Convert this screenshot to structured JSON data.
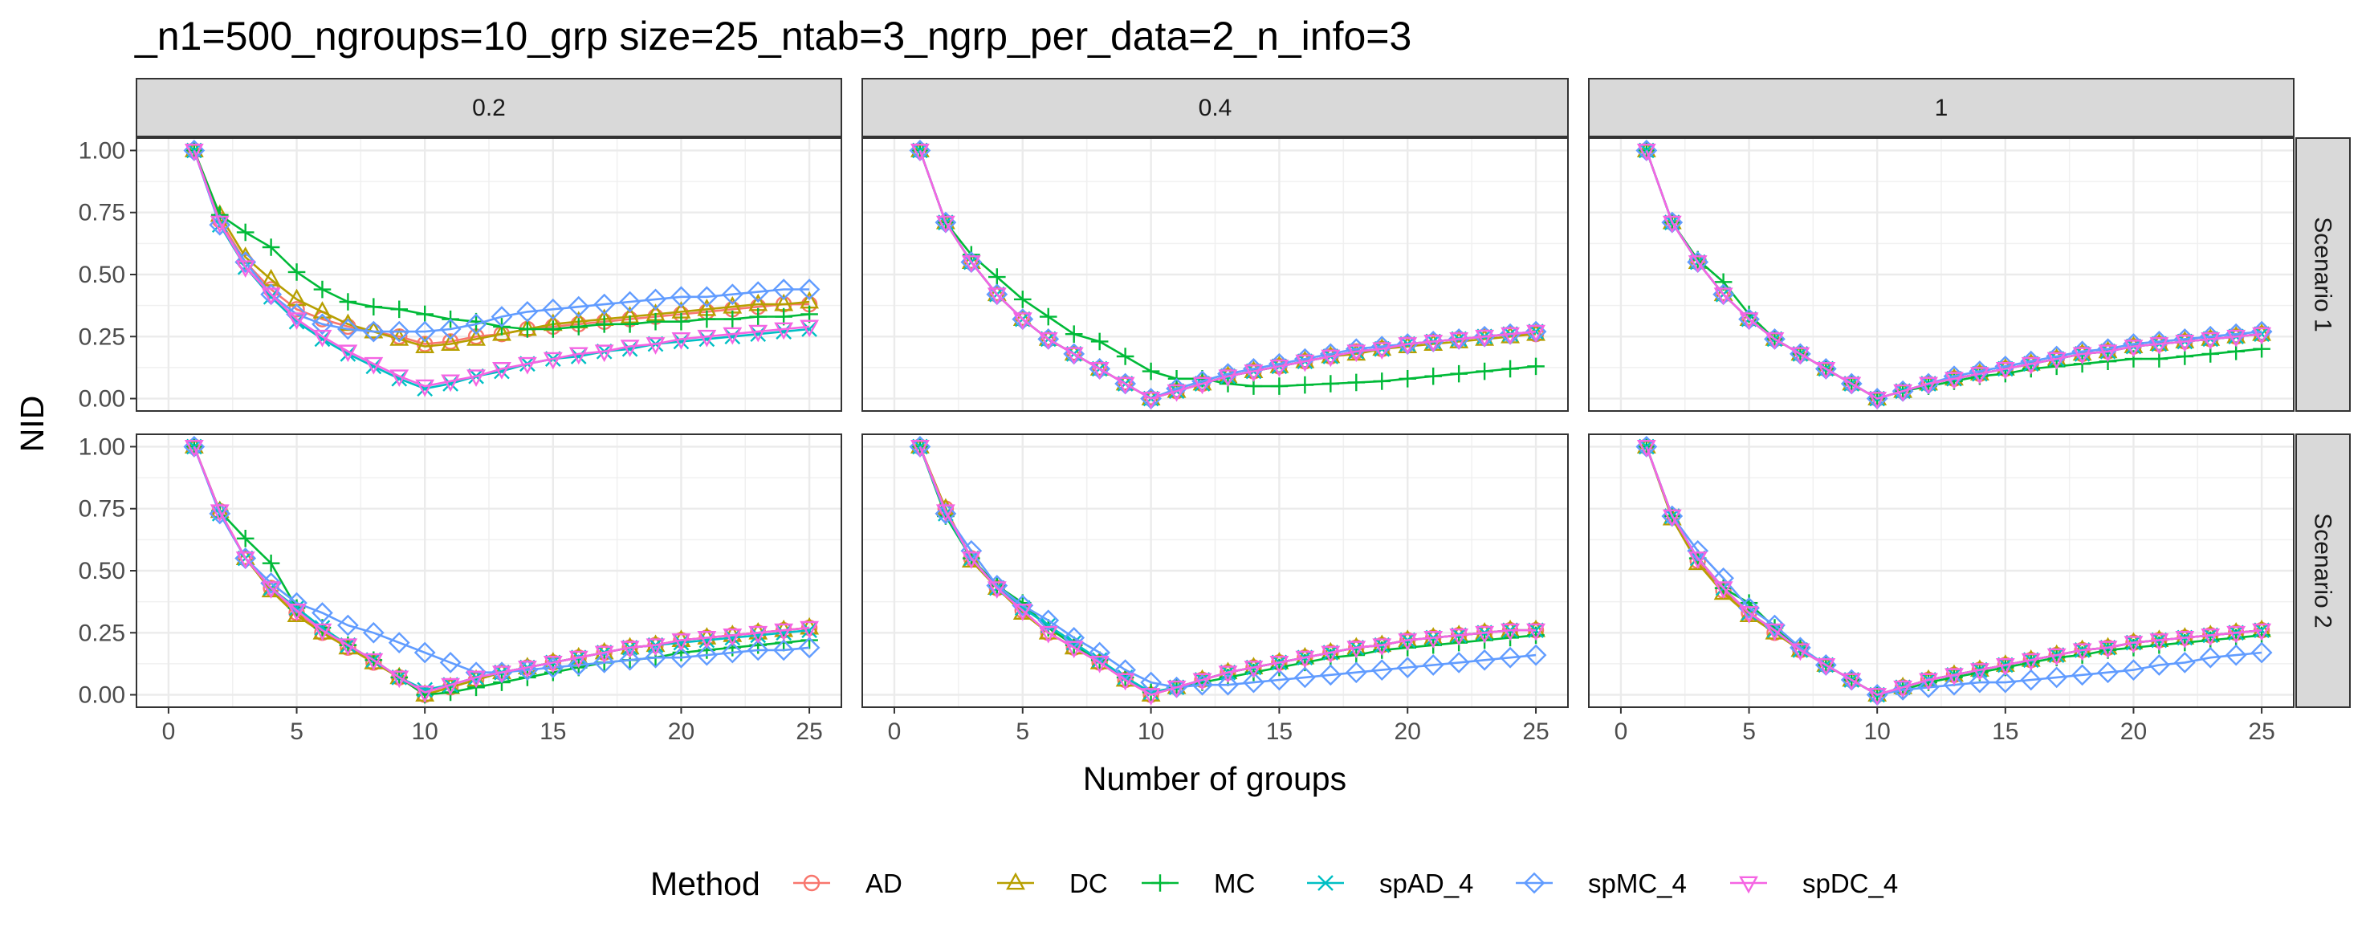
{
  "chart_data": {
    "type": "line",
    "title": "_n1=500_ngroups=10_grp size=25_ntab=3_ngrp_per_data=2_n_info=3",
    "xlabel": "Number of groups",
    "ylabel": "NID",
    "xlim": [
      0,
      25
    ],
    "ylim": [
      0,
      1
    ],
    "x_ticks": [
      "0",
      "5",
      "10",
      "15",
      "20",
      "25"
    ],
    "y_ticks": [
      "0.00",
      "0.25",
      "0.50",
      "0.75",
      "1.00"
    ],
    "grid": true,
    "legend_position": "bottom",
    "legend_title": "Method",
    "columns": [
      "0.2",
      "0.4",
      "1"
    ],
    "rows": [
      "Scenario 1",
      "Scenario 2"
    ],
    "x": [
      1,
      2,
      3,
      4,
      5,
      6,
      7,
      8,
      9,
      10,
      11,
      12,
      13,
      14,
      15,
      16,
      17,
      18,
      19,
      20,
      21,
      22,
      23,
      24,
      25
    ],
    "methods": [
      {
        "name": "AD",
        "color": "#F8766D",
        "marker": "circle"
      },
      {
        "name": "DC",
        "color": "#B79F00",
        "marker": "triangle-up"
      },
      {
        "name": "MC",
        "color": "#00BA38",
        "marker": "plus"
      },
      {
        "name": "spAD_4",
        "color": "#00BFC4",
        "marker": "cross"
      },
      {
        "name": "spMC_4",
        "color": "#619CFF",
        "marker": "diamond"
      },
      {
        "name": "spDC_4",
        "color": "#F564E3",
        "marker": "triangle-down"
      }
    ],
    "panels": [
      {
        "row": "Scenario 1",
        "col": "0.2",
        "series": {
          "AD": [
            1,
            0.72,
            0.55,
            0.44,
            0.36,
            0.32,
            0.29,
            0.27,
            0.25,
            0.22,
            0.23,
            0.25,
            0.26,
            0.28,
            0.29,
            0.3,
            0.31,
            0.32,
            0.33,
            0.34,
            0.35,
            0.36,
            0.37,
            0.38,
            0.38
          ],
          "DC": [
            1,
            0.74,
            0.57,
            0.48,
            0.4,
            0.35,
            0.3,
            0.27,
            0.24,
            0.21,
            0.22,
            0.24,
            0.26,
            0.28,
            0.3,
            0.31,
            0.32,
            0.33,
            0.34,
            0.35,
            0.36,
            0.37,
            0.38,
            0.38,
            0.39
          ],
          "MC": [
            1,
            0.74,
            0.67,
            0.61,
            0.51,
            0.44,
            0.39,
            0.37,
            0.36,
            0.34,
            0.32,
            0.31,
            0.29,
            0.28,
            0.28,
            0.29,
            0.3,
            0.3,
            0.31,
            0.31,
            0.32,
            0.32,
            0.33,
            0.33,
            0.34
          ],
          "spAD_4": [
            1,
            0.7,
            0.53,
            0.41,
            0.31,
            0.24,
            0.18,
            0.13,
            0.08,
            0.04,
            0.06,
            0.09,
            0.11,
            0.14,
            0.16,
            0.17,
            0.19,
            0.2,
            0.22,
            0.23,
            0.24,
            0.25,
            0.26,
            0.27,
            0.28
          ],
          "spMC_4": [
            1,
            0.7,
            0.55,
            0.42,
            0.34,
            0.3,
            0.28,
            0.27,
            0.27,
            0.27,
            0.28,
            0.3,
            0.33,
            0.35,
            0.36,
            0.37,
            0.38,
            0.39,
            0.4,
            0.41,
            0.41,
            0.42,
            0.43,
            0.44,
            0.44
          ],
          "spDC_4": [
            1,
            0.71,
            0.53,
            0.42,
            0.32,
            0.25,
            0.19,
            0.14,
            0.09,
            0.05,
            0.07,
            0.09,
            0.12,
            0.14,
            0.16,
            0.18,
            0.19,
            0.21,
            0.22,
            0.24,
            0.25,
            0.26,
            0.27,
            0.28,
            0.29
          ]
        }
      },
      {
        "row": "Scenario 1",
        "col": "0.4",
        "series": {
          "AD": [
            1,
            0.71,
            0.55,
            0.42,
            0.32,
            0.24,
            0.18,
            0.12,
            0.06,
            0.0,
            0.03,
            0.06,
            0.09,
            0.11,
            0.13,
            0.15,
            0.17,
            0.19,
            0.2,
            0.22,
            0.23,
            0.24,
            0.25,
            0.26,
            0.26
          ],
          "DC": [
            1,
            0.71,
            0.55,
            0.42,
            0.32,
            0.24,
            0.18,
            0.12,
            0.06,
            0.0,
            0.03,
            0.06,
            0.09,
            0.11,
            0.13,
            0.15,
            0.17,
            0.18,
            0.2,
            0.21,
            0.22,
            0.23,
            0.24,
            0.25,
            0.26
          ],
          "MC": [
            1,
            0.71,
            0.58,
            0.49,
            0.4,
            0.33,
            0.26,
            0.23,
            0.17,
            0.11,
            0.08,
            0.08,
            0.06,
            0.05,
            0.05,
            0.055,
            0.06,
            0.065,
            0.07,
            0.08,
            0.09,
            0.1,
            0.11,
            0.12,
            0.13
          ],
          "spAD_4": [
            1,
            0.71,
            0.55,
            0.42,
            0.32,
            0.24,
            0.18,
            0.12,
            0.06,
            0.0,
            0.03,
            0.06,
            0.09,
            0.11,
            0.13,
            0.15,
            0.17,
            0.19,
            0.2,
            0.22,
            0.23,
            0.24,
            0.25,
            0.26,
            0.27
          ],
          "spMC_4": [
            1,
            0.71,
            0.55,
            0.42,
            0.32,
            0.24,
            0.18,
            0.12,
            0.06,
            0.0,
            0.04,
            0.07,
            0.1,
            0.12,
            0.14,
            0.16,
            0.18,
            0.2,
            0.21,
            0.22,
            0.23,
            0.24,
            0.25,
            0.26,
            0.27
          ],
          "spDC_4": [
            1,
            0.71,
            0.55,
            0.42,
            0.32,
            0.24,
            0.18,
            0.12,
            0.06,
            0.0,
            0.03,
            0.06,
            0.09,
            0.11,
            0.13,
            0.15,
            0.17,
            0.19,
            0.2,
            0.22,
            0.23,
            0.24,
            0.25,
            0.26,
            0.27
          ]
        }
      },
      {
        "row": "Scenario 1",
        "col": "1",
        "series": {
          "AD": [
            1,
            0.71,
            0.55,
            0.42,
            0.32,
            0.24,
            0.18,
            0.12,
            0.06,
            0.0,
            0.03,
            0.06,
            0.08,
            0.1,
            0.12,
            0.14,
            0.16,
            0.18,
            0.19,
            0.21,
            0.22,
            0.23,
            0.24,
            0.25,
            0.26
          ],
          "DC": [
            1,
            0.71,
            0.55,
            0.42,
            0.32,
            0.24,
            0.18,
            0.12,
            0.06,
            0.0,
            0.03,
            0.06,
            0.08,
            0.1,
            0.12,
            0.14,
            0.16,
            0.18,
            0.19,
            0.21,
            0.22,
            0.23,
            0.24,
            0.25,
            0.26
          ],
          "MC": [
            1,
            0.71,
            0.56,
            0.47,
            0.34,
            0.24,
            0.18,
            0.12,
            0.06,
            0.0,
            0.03,
            0.05,
            0.07,
            0.09,
            0.1,
            0.12,
            0.13,
            0.14,
            0.15,
            0.16,
            0.16,
            0.17,
            0.18,
            0.19,
            0.2
          ],
          "spAD_4": [
            1,
            0.71,
            0.55,
            0.42,
            0.32,
            0.24,
            0.18,
            0.12,
            0.06,
            0.0,
            0.03,
            0.06,
            0.08,
            0.1,
            0.12,
            0.14,
            0.16,
            0.18,
            0.19,
            0.21,
            0.22,
            0.23,
            0.24,
            0.25,
            0.26
          ],
          "spMC_4": [
            1,
            0.71,
            0.55,
            0.42,
            0.32,
            0.24,
            0.18,
            0.12,
            0.06,
            0.0,
            0.03,
            0.06,
            0.09,
            0.11,
            0.13,
            0.15,
            0.17,
            0.19,
            0.2,
            0.22,
            0.23,
            0.24,
            0.25,
            0.26,
            0.27
          ],
          "spDC_4": [
            1,
            0.71,
            0.55,
            0.42,
            0.32,
            0.24,
            0.18,
            0.12,
            0.06,
            0.0,
            0.03,
            0.06,
            0.08,
            0.1,
            0.12,
            0.14,
            0.16,
            0.18,
            0.19,
            0.21,
            0.22,
            0.23,
            0.24,
            0.25,
            0.26
          ]
        }
      },
      {
        "row": "Scenario 2",
        "col": "0.2",
        "series": {
          "AD": [
            1,
            0.74,
            0.55,
            0.43,
            0.33,
            0.25,
            0.19,
            0.13,
            0.07,
            0.0,
            0.03,
            0.06,
            0.09,
            0.11,
            0.13,
            0.15,
            0.17,
            0.19,
            0.2,
            0.22,
            0.23,
            0.24,
            0.25,
            0.26,
            0.27
          ],
          "DC": [
            1,
            0.74,
            0.55,
            0.42,
            0.32,
            0.25,
            0.19,
            0.13,
            0.07,
            0.0,
            0.03,
            0.06,
            0.09,
            0.11,
            0.13,
            0.15,
            0.17,
            0.19,
            0.2,
            0.22,
            0.23,
            0.24,
            0.25,
            0.26,
            0.27
          ],
          "MC": [
            1,
            0.74,
            0.63,
            0.53,
            0.35,
            0.27,
            0.2,
            0.14,
            0.07,
            0.0,
            0.01,
            0.03,
            0.05,
            0.07,
            0.09,
            0.11,
            0.13,
            0.14,
            0.15,
            0.17,
            0.18,
            0.19,
            0.2,
            0.21,
            0.22
          ],
          "spAD_4": [
            1,
            0.73,
            0.55,
            0.43,
            0.35,
            0.27,
            0.2,
            0.14,
            0.07,
            0.02,
            0.04,
            0.07,
            0.09,
            0.11,
            0.13,
            0.15,
            0.17,
            0.19,
            0.2,
            0.21,
            0.22,
            0.23,
            0.24,
            0.25,
            0.26
          ],
          "spMC_4": [
            1,
            0.73,
            0.55,
            0.45,
            0.37,
            0.33,
            0.28,
            0.25,
            0.21,
            0.17,
            0.13,
            0.09,
            0.09,
            0.1,
            0.11,
            0.12,
            0.13,
            0.14,
            0.15,
            0.15,
            0.16,
            0.17,
            0.18,
            0.18,
            0.19
          ],
          "spDC_4": [
            1,
            0.74,
            0.55,
            0.43,
            0.34,
            0.26,
            0.2,
            0.14,
            0.07,
            0.01,
            0.04,
            0.07,
            0.09,
            0.11,
            0.13,
            0.15,
            0.17,
            0.19,
            0.2,
            0.22,
            0.23,
            0.24,
            0.25,
            0.26,
            0.27
          ]
        }
      },
      {
        "row": "Scenario 2",
        "col": "0.4",
        "series": {
          "AD": [
            1,
            0.75,
            0.55,
            0.43,
            0.34,
            0.25,
            0.19,
            0.13,
            0.06,
            0.0,
            0.03,
            0.06,
            0.09,
            0.11,
            0.13,
            0.15,
            0.17,
            0.19,
            0.2,
            0.22,
            0.23,
            0.24,
            0.25,
            0.26,
            0.26
          ],
          "DC": [
            1,
            0.75,
            0.54,
            0.43,
            0.33,
            0.25,
            0.19,
            0.13,
            0.06,
            0.0,
            0.03,
            0.06,
            0.09,
            0.11,
            0.13,
            0.15,
            0.17,
            0.19,
            0.2,
            0.22,
            0.23,
            0.24,
            0.25,
            0.26,
            0.26
          ],
          "MC": [
            1,
            0.72,
            0.55,
            0.44,
            0.37,
            0.27,
            0.2,
            0.14,
            0.07,
            0.01,
            0.03,
            0.05,
            0.07,
            0.09,
            0.11,
            0.13,
            0.15,
            0.16,
            0.18,
            0.19,
            0.2,
            0.21,
            0.22,
            0.23,
            0.24
          ],
          "spAD_4": [
            1,
            0.73,
            0.55,
            0.43,
            0.35,
            0.28,
            0.21,
            0.14,
            0.07,
            0.01,
            0.03,
            0.06,
            0.09,
            0.11,
            0.13,
            0.15,
            0.17,
            0.19,
            0.2,
            0.22,
            0.23,
            0.24,
            0.25,
            0.26,
            0.26
          ],
          "spMC_4": [
            1,
            0.73,
            0.58,
            0.44,
            0.36,
            0.3,
            0.23,
            0.17,
            0.1,
            0.05,
            0.03,
            0.04,
            0.04,
            0.05,
            0.06,
            0.07,
            0.08,
            0.09,
            0.1,
            0.11,
            0.12,
            0.13,
            0.14,
            0.15,
            0.16
          ],
          "spDC_4": [
            1,
            0.74,
            0.55,
            0.43,
            0.34,
            0.25,
            0.19,
            0.13,
            0.06,
            0.0,
            0.03,
            0.06,
            0.09,
            0.11,
            0.13,
            0.15,
            0.17,
            0.19,
            0.2,
            0.22,
            0.23,
            0.24,
            0.25,
            0.26,
            0.26
          ]
        }
      },
      {
        "row": "Scenario 2",
        "col": "1",
        "series": {
          "AD": [
            1,
            0.72,
            0.54,
            0.42,
            0.33,
            0.25,
            0.18,
            0.12,
            0.06,
            0.0,
            0.03,
            0.06,
            0.08,
            0.1,
            0.12,
            0.14,
            0.16,
            0.18,
            0.19,
            0.21,
            0.22,
            0.23,
            0.24,
            0.25,
            0.26
          ],
          "DC": [
            1,
            0.71,
            0.53,
            0.41,
            0.32,
            0.25,
            0.18,
            0.12,
            0.06,
            0.0,
            0.03,
            0.06,
            0.08,
            0.1,
            0.12,
            0.14,
            0.16,
            0.18,
            0.19,
            0.21,
            0.22,
            0.23,
            0.24,
            0.25,
            0.26
          ],
          "MC": [
            1,
            0.72,
            0.55,
            0.43,
            0.37,
            0.27,
            0.19,
            0.12,
            0.06,
            0.0,
            0.02,
            0.05,
            0.07,
            0.09,
            0.11,
            0.13,
            0.15,
            0.16,
            0.18,
            0.19,
            0.2,
            0.21,
            0.22,
            0.23,
            0.24
          ],
          "spAD_4": [
            1,
            0.72,
            0.55,
            0.43,
            0.33,
            0.26,
            0.18,
            0.12,
            0.06,
            0.0,
            0.03,
            0.06,
            0.08,
            0.1,
            0.12,
            0.14,
            0.16,
            0.18,
            0.19,
            0.21,
            0.22,
            0.23,
            0.24,
            0.25,
            0.26
          ],
          "spMC_4": [
            1,
            0.72,
            0.58,
            0.47,
            0.35,
            0.28,
            0.19,
            0.12,
            0.06,
            0.0,
            0.02,
            0.03,
            0.04,
            0.05,
            0.05,
            0.06,
            0.07,
            0.08,
            0.09,
            0.1,
            0.12,
            0.13,
            0.15,
            0.16,
            0.17
          ],
          "spDC_4": [
            1,
            0.72,
            0.55,
            0.43,
            0.33,
            0.26,
            0.18,
            0.12,
            0.06,
            0.0,
            0.03,
            0.06,
            0.08,
            0.1,
            0.12,
            0.14,
            0.16,
            0.18,
            0.19,
            0.21,
            0.22,
            0.23,
            0.24,
            0.25,
            0.26
          ]
        }
      }
    ]
  }
}
